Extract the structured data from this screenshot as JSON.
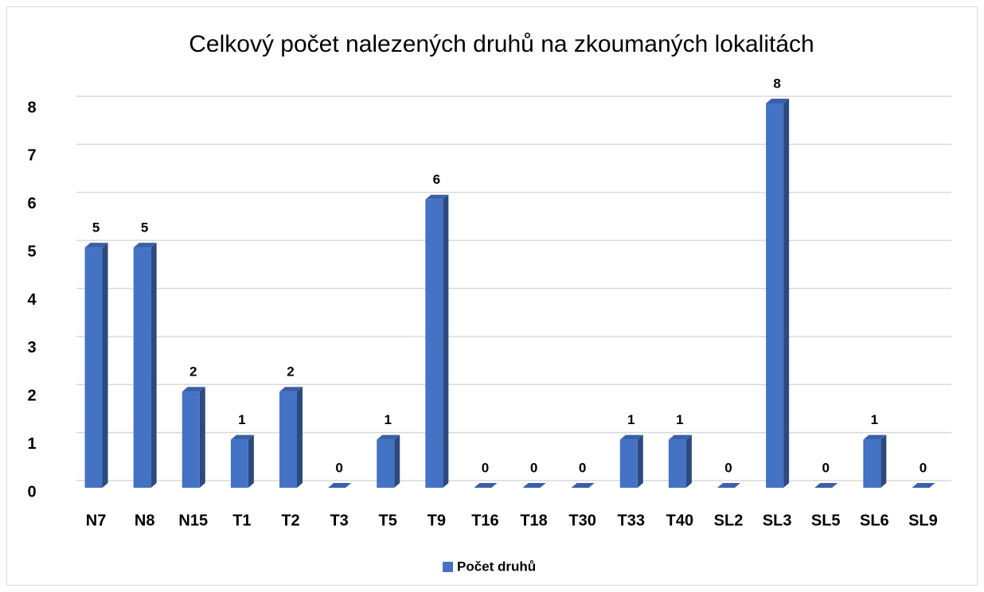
{
  "chart_data": {
    "type": "bar3d",
    "title": "Celkový počet nalezených druhů na zkoumaných lokalitách",
    "categories": [
      "N7",
      "N8",
      "N15",
      "T1",
      "T2",
      "T3",
      "T5",
      "T9",
      "T16",
      "T18",
      "T30",
      "T33",
      "T40",
      "SL2",
      "SL3",
      "SL5",
      "SL6",
      "SL9"
    ],
    "series": [
      {
        "name": "Počet druhů",
        "color": "#4472c4",
        "values": [
          5,
          5,
          2,
          1,
          2,
          0,
          1,
          6,
          0,
          0,
          0,
          1,
          1,
          0,
          8,
          0,
          1,
          0
        ]
      }
    ],
    "ylim": [
      0,
      8
    ],
    "yticks": [
      0,
      1,
      2,
      3,
      4,
      5,
      6,
      7,
      8
    ],
    "grid": true,
    "legend": "bottom"
  }
}
